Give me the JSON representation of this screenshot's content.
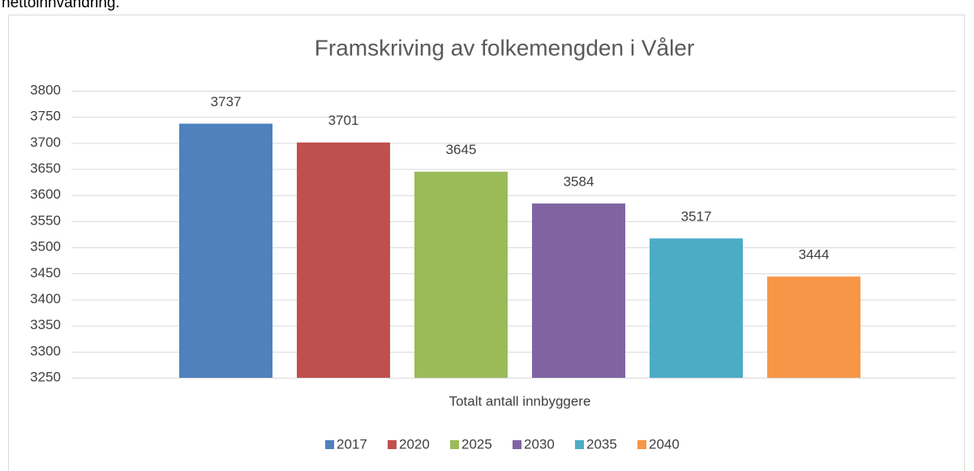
{
  "intro_text": "nettoinnvandring.",
  "chart_data": {
    "type": "bar",
    "title": "Framskriving av folkemengden i Våler",
    "categories": [
      "Totalt antall innbyggere"
    ],
    "series": [
      {
        "name": "2017",
        "color": "#4f81bd",
        "values": [
          3737
        ]
      },
      {
        "name": "2020",
        "color": "#c0504d",
        "values": [
          3701
        ]
      },
      {
        "name": "2025",
        "color": "#9bbb59",
        "values": [
          3645
        ]
      },
      {
        "name": "2030",
        "color": "#8064a2",
        "values": [
          3584
        ]
      },
      {
        "name": "2035",
        "color": "#4bacc6",
        "values": [
          3517
        ]
      },
      {
        "name": "2040",
        "color": "#f79646",
        "values": [
          3444
        ]
      }
    ],
    "ylim": [
      3250,
      3800
    ],
    "yticks": [
      3250,
      3300,
      3350,
      3400,
      3450,
      3500,
      3550,
      3600,
      3650,
      3700,
      3750,
      3800
    ],
    "grid": true,
    "legend": "bottom"
  }
}
